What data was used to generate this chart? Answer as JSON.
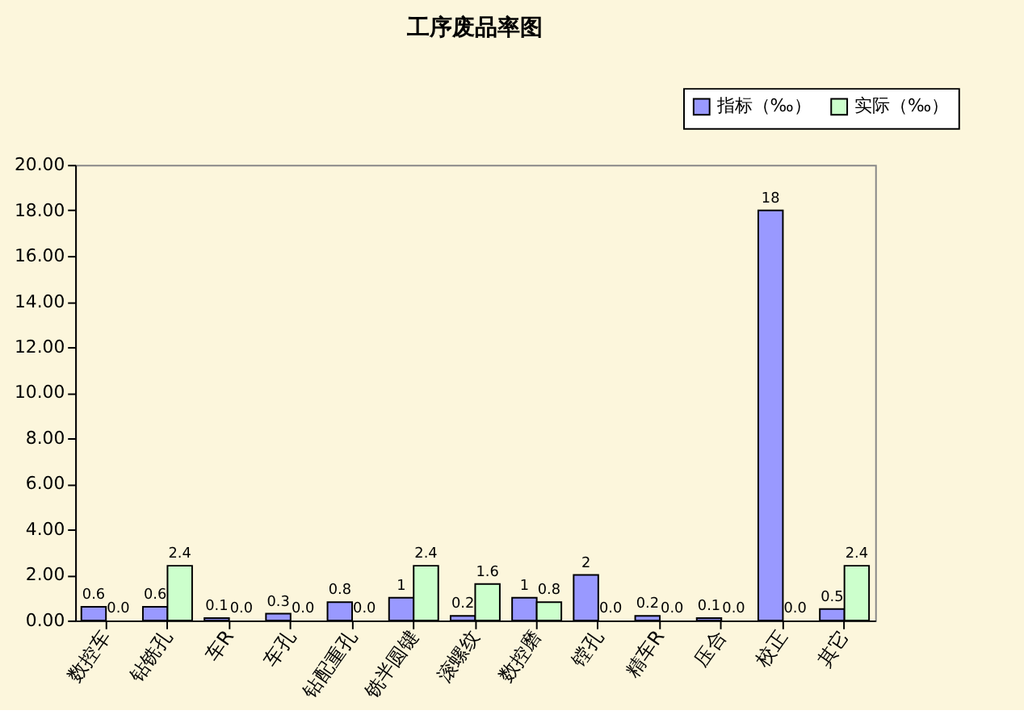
{
  "chart_data": {
    "type": "bar",
    "title": "工序废品率图",
    "categories": [
      "数控车",
      "钻铣孔",
      "车R",
      "车孔",
      "钻配重孔",
      "铣半圆键",
      "滚螺纹",
      "数控磨",
      "镗孔",
      "精车R",
      "压合",
      "校正",
      "其它"
    ],
    "series": [
      {
        "name": "指标（‰）",
        "color": "#9999ff",
        "values": [
          0.6,
          0.6,
          0.1,
          0.3,
          0.8,
          1,
          0.2,
          1,
          2,
          0.2,
          0.1,
          18,
          0.5
        ],
        "value_labels": [
          "0.6",
          "0.6",
          "0.1",
          "0.3",
          "0.8",
          "1",
          "0.2",
          "1",
          "2",
          "0.2",
          "0.1",
          "18",
          "0.5"
        ]
      },
      {
        "name": "实际（‰）",
        "color": "#ccffcc",
        "values": [
          0,
          2.4,
          0,
          0,
          0,
          2.4,
          1.6,
          0.8,
          0,
          0,
          0,
          0,
          2.4
        ],
        "value_labels": [
          "0.0",
          "2.4",
          "0.0",
          "0.0",
          "0.0",
          "2.4",
          "1.6",
          "0.8",
          "0.0",
          "0.0",
          "0.0",
          "0.0",
          "2.4"
        ]
      }
    ],
    "ylim": [
      0,
      20
    ],
    "yticks": [
      {
        "value": 0,
        "label": "0.00"
      },
      {
        "value": 2,
        "label": "2.00"
      },
      {
        "value": 4,
        "label": "4.00"
      },
      {
        "value": 6,
        "label": "6.00"
      },
      {
        "value": 8,
        "label": "8.00"
      },
      {
        "value": 10,
        "label": "10.00"
      },
      {
        "value": 12,
        "label": "12.00"
      },
      {
        "value": 14,
        "label": "14.00"
      },
      {
        "value": 16,
        "label": "16.00"
      },
      {
        "value": 18,
        "label": "18.00"
      },
      {
        "value": 20,
        "label": "20.00"
      }
    ],
    "grid": false,
    "legend": "top right"
  }
}
